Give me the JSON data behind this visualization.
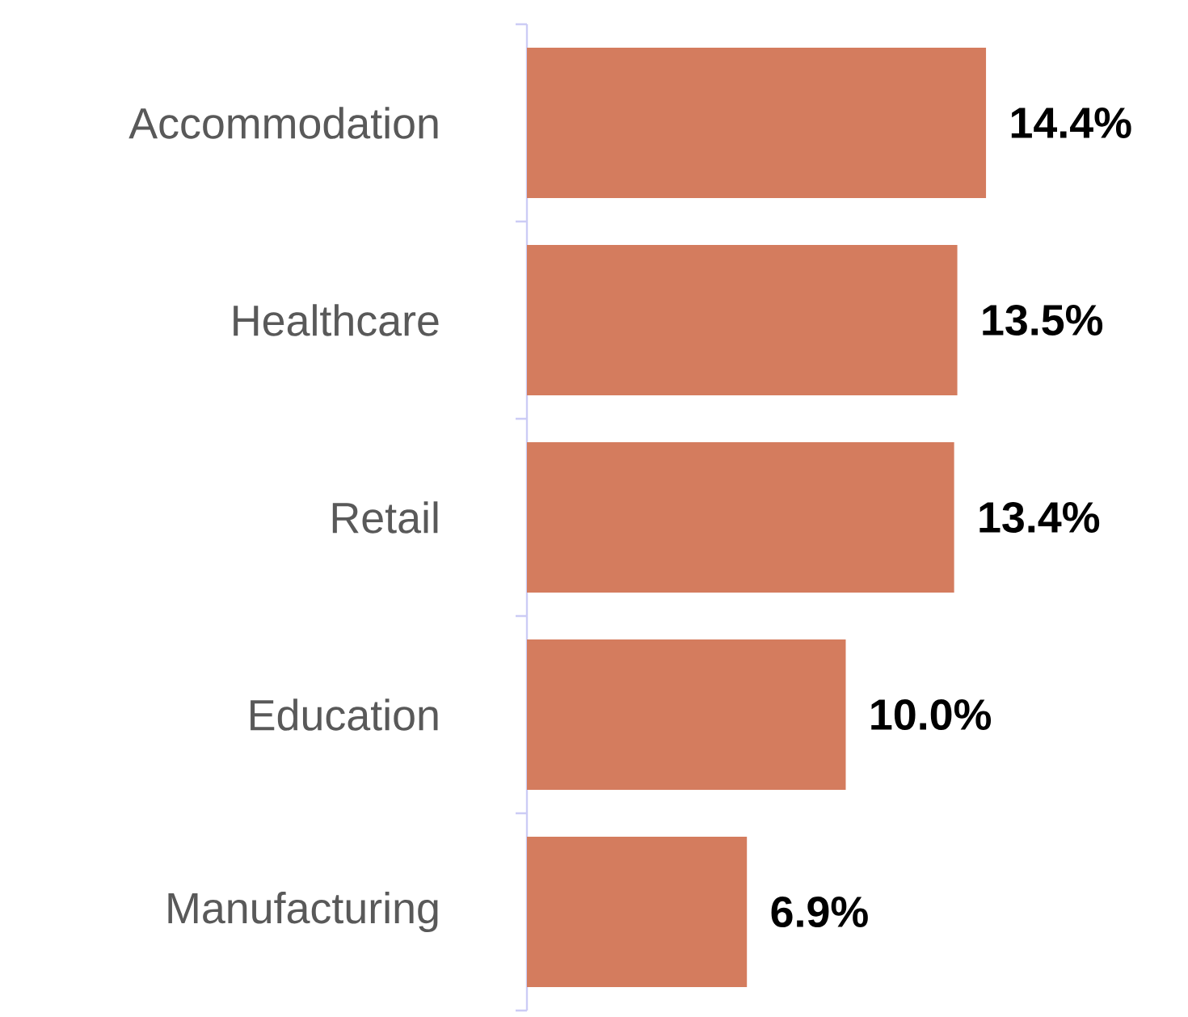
{
  "chart_data": {
    "type": "bar",
    "orientation": "horizontal",
    "categories": [
      "Accommodation",
      "Healthcare",
      "Retail",
      "Education",
      "Manufacturing"
    ],
    "values": [
      14.4,
      13.5,
      13.4,
      10.0,
      6.9
    ],
    "value_labels": [
      "14.4%",
      "13.5%",
      "13.4%",
      "10.0%",
      "6.9%"
    ],
    "color": "#d47c5e"
  }
}
